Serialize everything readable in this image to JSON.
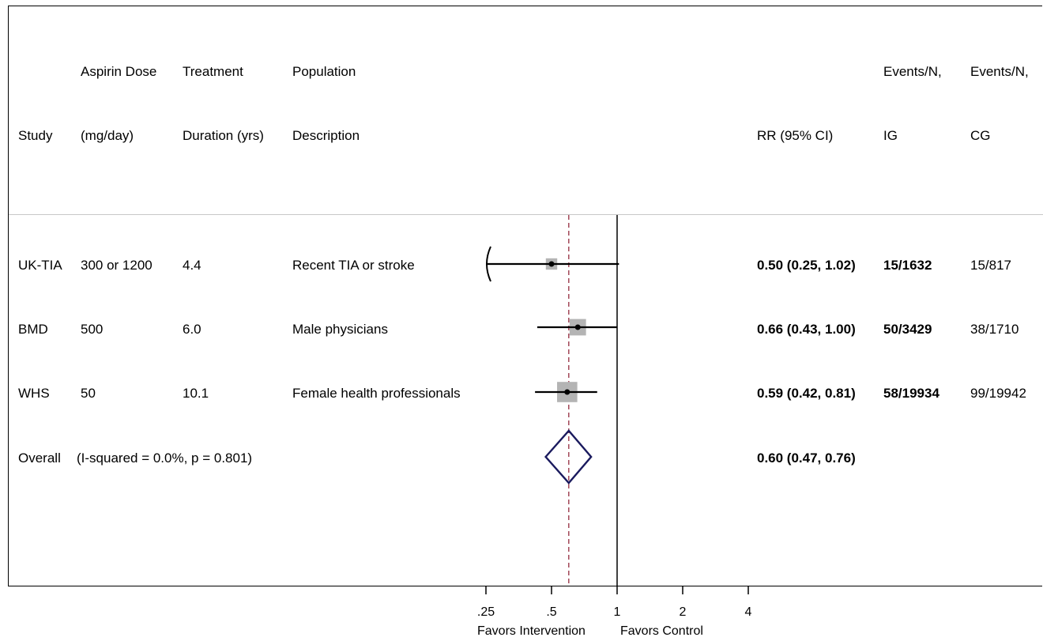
{
  "header": {
    "study_l2": "Study",
    "dose_l1": "Aspirin Dose",
    "dose_l2": "(mg/day)",
    "duration_l1": "Treatment",
    "duration_l2": "Duration (yrs)",
    "population_l1": "Population",
    "population_l2": "Description",
    "rr_l2": "RR (95% CI)",
    "ig_l1": "Events/N,",
    "ig_l2": "IG",
    "cg_l1": "Events/N,",
    "cg_l2": "CG"
  },
  "rows": [
    {
      "study": "UK-TIA",
      "dose": "300 or 1200",
      "duration": "4.4",
      "population": "Recent TIA or stroke",
      "rr": "0.50 (0.25, 1.02)",
      "ig": "15/1632",
      "cg": "15/817"
    },
    {
      "study": "BMD",
      "dose": "500",
      "duration": "6.0",
      "population": "Male physicians",
      "rr": "0.66 (0.43, 1.00)",
      "ig": "50/3429",
      "cg": "38/1710"
    },
    {
      "study": "WHS",
      "dose": "50",
      "duration": "10.1",
      "population": "Female health professionals",
      "rr": "0.59 (0.42, 0.81)",
      "ig": "58/19934",
      "cg": "99/19942"
    }
  ],
  "overall": {
    "label": "Overall",
    "heterogeneity": "(I-squared = 0.0%, p = 0.801)",
    "rr": "0.60 (0.47, 0.76)"
  },
  "xaxis": {
    "ticks": [
      ".25",
      ".5",
      "1",
      "2",
      "4"
    ],
    "favors_left": "Favors Intervention",
    "favors_right": "Favors Control"
  },
  "chart_data": {
    "type": "forest",
    "scale": "log",
    "xlim": [
      0.25,
      4
    ],
    "reference_line": 1,
    "pooled_estimate_line": 0.6,
    "studies": [
      {
        "name": "UK-TIA",
        "rr": 0.5,
        "lower": 0.25,
        "upper": 1.02,
        "arrow_left": true,
        "weight": 0.9
      },
      {
        "name": "BMD",
        "rr": 0.66,
        "lower": 0.43,
        "upper": 1.0,
        "arrow_left": false,
        "weight": 1.3
      },
      {
        "name": "WHS",
        "rr": 0.59,
        "lower": 0.42,
        "upper": 0.81,
        "arrow_left": false,
        "weight": 1.6
      }
    ],
    "overall": {
      "rr": 0.6,
      "lower": 0.47,
      "upper": 0.76
    },
    "colors": {
      "marker_box": "#b4b4b4",
      "pooled_line": "#8b1a2e",
      "diamond": "#1a1a5e",
      "lines": "#000000"
    }
  }
}
